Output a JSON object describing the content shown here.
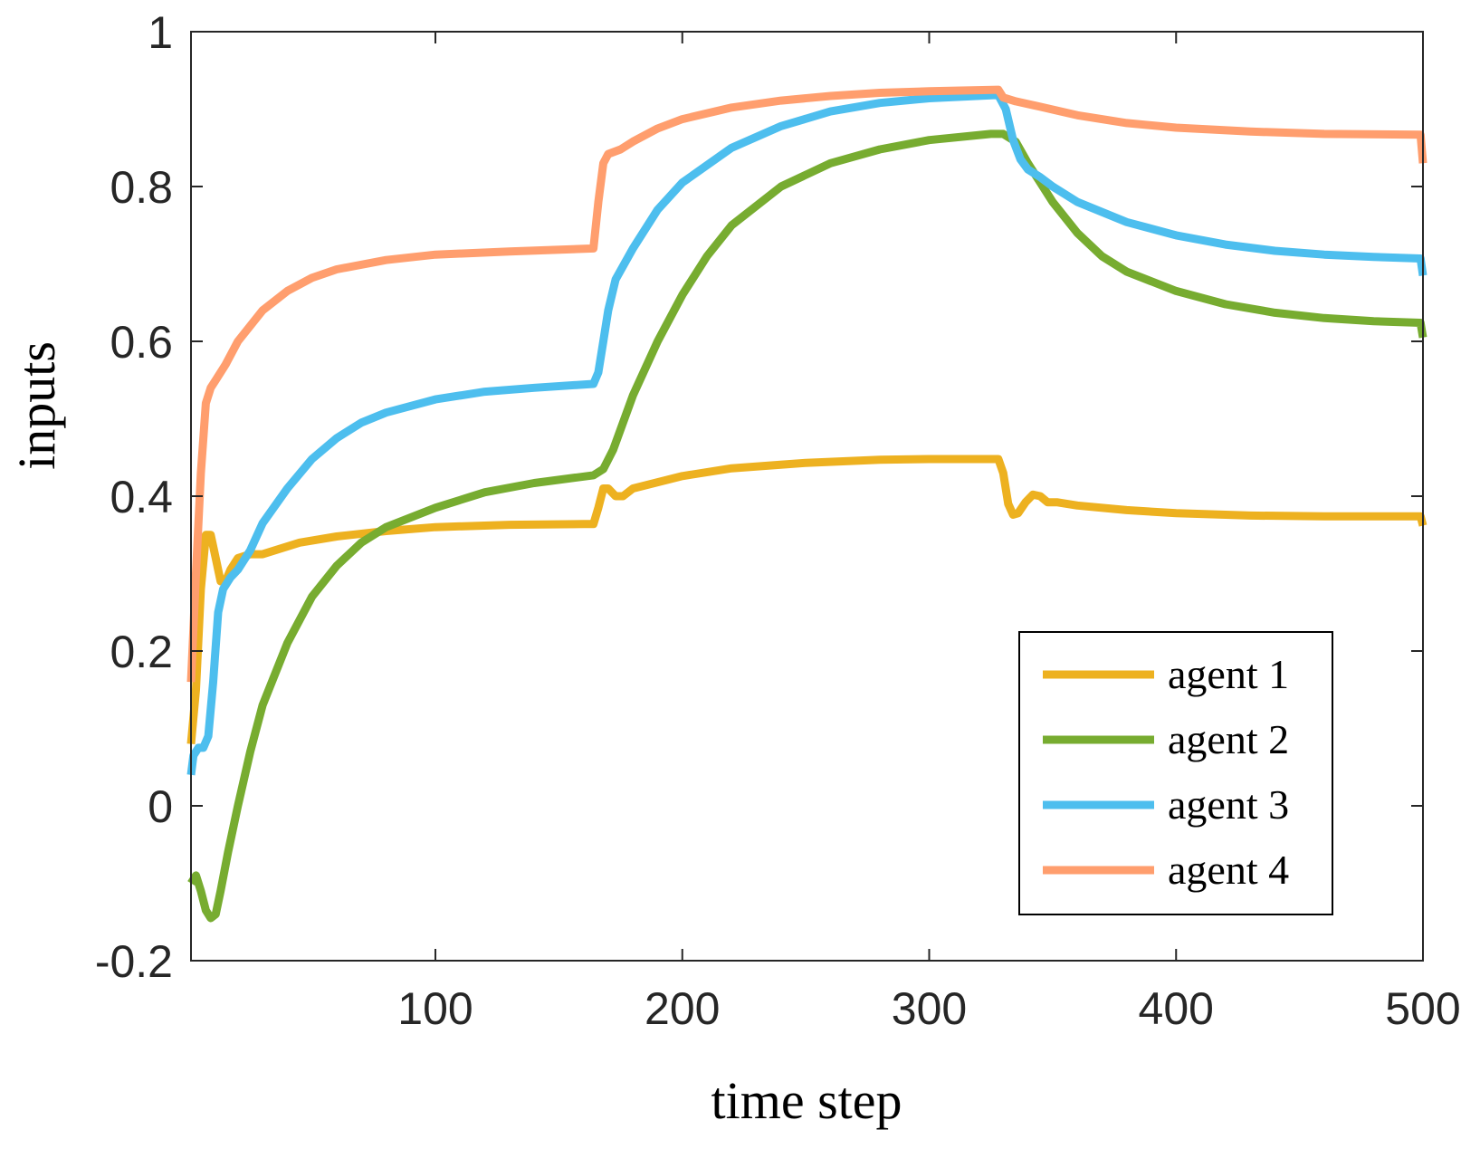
{
  "chart_data": {
    "type": "line",
    "title": "",
    "xlabel": "time step",
    "ylabel": "inputs",
    "xlim": [
      1,
      500
    ],
    "ylim": [
      -0.2,
      1
    ],
    "xticks": [
      100,
      200,
      300,
      400,
      500
    ],
    "xtick_labels": [
      "100",
      "200",
      "300",
      "400",
      "500"
    ],
    "yticks": [
      -0.2,
      0,
      0.2,
      0.4,
      0.6,
      0.8,
      1
    ],
    "ytick_labels": [
      "-0.2",
      "0",
      "0.2",
      "0.4",
      "0.6",
      "0.8",
      "1"
    ],
    "grid": false,
    "legend_position": "bottom-right",
    "series": [
      {
        "name": "agent 1",
        "color": "#EDB120",
        "points": [
          [
            1,
            0.08
          ],
          [
            3,
            0.15
          ],
          [
            5,
            0.28
          ],
          [
            7,
            0.35
          ],
          [
            9,
            0.35
          ],
          [
            11,
            0.32
          ],
          [
            13,
            0.29
          ],
          [
            15,
            0.29
          ],
          [
            17,
            0.305
          ],
          [
            20,
            0.32
          ],
          [
            25,
            0.325
          ],
          [
            30,
            0.325
          ],
          [
            35,
            0.33
          ],
          [
            45,
            0.34
          ],
          [
            60,
            0.348
          ],
          [
            80,
            0.355
          ],
          [
            100,
            0.36
          ],
          [
            130,
            0.363
          ],
          [
            160,
            0.364
          ],
          [
            164,
            0.364
          ],
          [
            166,
            0.385
          ],
          [
            168,
            0.41
          ],
          [
            170,
            0.41
          ],
          [
            173,
            0.4
          ],
          [
            176,
            0.4
          ],
          [
            180,
            0.41
          ],
          [
            190,
            0.418
          ],
          [
            200,
            0.426
          ],
          [
            220,
            0.436
          ],
          [
            250,
            0.443
          ],
          [
            280,
            0.447
          ],
          [
            300,
            0.448
          ],
          [
            328,
            0.448
          ],
          [
            330,
            0.43
          ],
          [
            332,
            0.39
          ],
          [
            334,
            0.376
          ],
          [
            336,
            0.378
          ],
          [
            339,
            0.392
          ],
          [
            342,
            0.402
          ],
          [
            345,
            0.4
          ],
          [
            348,
            0.392
          ],
          [
            352,
            0.392
          ],
          [
            360,
            0.388
          ],
          [
            380,
            0.382
          ],
          [
            400,
            0.378
          ],
          [
            430,
            0.375
          ],
          [
            460,
            0.374
          ],
          [
            499,
            0.374
          ],
          [
            500,
            0.362
          ]
        ]
      },
      {
        "name": "agent 2",
        "color": "#77AC30",
        "points": [
          [
            1,
            -0.1
          ],
          [
            3,
            -0.09
          ],
          [
            5,
            -0.11
          ],
          [
            7,
            -0.135
          ],
          [
            9,
            -0.145
          ],
          [
            11,
            -0.14
          ],
          [
            13,
            -0.11
          ],
          [
            16,
            -0.06
          ],
          [
            20,
            0.0
          ],
          [
            25,
            0.07
          ],
          [
            30,
            0.13
          ],
          [
            40,
            0.21
          ],
          [
            50,
            0.27
          ],
          [
            60,
            0.31
          ],
          [
            70,
            0.34
          ],
          [
            80,
            0.36
          ],
          [
            100,
            0.385
          ],
          [
            120,
            0.405
          ],
          [
            140,
            0.417
          ],
          [
            164,
            0.427
          ],
          [
            168,
            0.435
          ],
          [
            172,
            0.46
          ],
          [
            180,
            0.53
          ],
          [
            190,
            0.6
          ],
          [
            200,
            0.66
          ],
          [
            210,
            0.71
          ],
          [
            220,
            0.75
          ],
          [
            240,
            0.8
          ],
          [
            260,
            0.83
          ],
          [
            280,
            0.848
          ],
          [
            300,
            0.86
          ],
          [
            325,
            0.868
          ],
          [
            330,
            0.868
          ],
          [
            335,
            0.858
          ],
          [
            340,
            0.83
          ],
          [
            350,
            0.78
          ],
          [
            360,
            0.74
          ],
          [
            370,
            0.71
          ],
          [
            380,
            0.69
          ],
          [
            400,
            0.665
          ],
          [
            420,
            0.648
          ],
          [
            440,
            0.637
          ],
          [
            460,
            0.63
          ],
          [
            480,
            0.626
          ],
          [
            499,
            0.624
          ],
          [
            500,
            0.605
          ]
        ]
      },
      {
        "name": "agent 3",
        "color": "#4DBEEE",
        "points": [
          [
            1,
            0.04
          ],
          [
            2,
            0.065
          ],
          [
            4,
            0.075
          ],
          [
            6,
            0.075
          ],
          [
            8,
            0.09
          ],
          [
            10,
            0.16
          ],
          [
            12,
            0.25
          ],
          [
            14,
            0.28
          ],
          [
            17,
            0.295
          ],
          [
            20,
            0.305
          ],
          [
            25,
            0.33
          ],
          [
            30,
            0.365
          ],
          [
            40,
            0.41
          ],
          [
            50,
            0.448
          ],
          [
            60,
            0.475
          ],
          [
            70,
            0.495
          ],
          [
            80,
            0.508
          ],
          [
            100,
            0.525
          ],
          [
            120,
            0.535
          ],
          [
            140,
            0.54
          ],
          [
            164,
            0.545
          ],
          [
            166,
            0.56
          ],
          [
            168,
            0.6
          ],
          [
            170,
            0.64
          ],
          [
            173,
            0.68
          ],
          [
            180,
            0.72
          ],
          [
            190,
            0.77
          ],
          [
            200,
            0.805
          ],
          [
            220,
            0.85
          ],
          [
            240,
            0.878
          ],
          [
            260,
            0.897
          ],
          [
            280,
            0.908
          ],
          [
            300,
            0.914
          ],
          [
            326,
            0.918
          ],
          [
            328,
            0.918
          ],
          [
            331,
            0.9
          ],
          [
            334,
            0.86
          ],
          [
            337,
            0.835
          ],
          [
            340,
            0.822
          ],
          [
            345,
            0.812
          ],
          [
            350,
            0.8
          ],
          [
            360,
            0.78
          ],
          [
            380,
            0.754
          ],
          [
            400,
            0.737
          ],
          [
            420,
            0.725
          ],
          [
            440,
            0.717
          ],
          [
            460,
            0.712
          ],
          [
            480,
            0.709
          ],
          [
            499,
            0.707
          ],
          [
            500,
            0.685
          ]
        ]
      },
      {
        "name": "agent 4",
        "color": "#FF9E6E",
        "points": [
          [
            1,
            0.16
          ],
          [
            3,
            0.3
          ],
          [
            5,
            0.43
          ],
          [
            7,
            0.52
          ],
          [
            9,
            0.54
          ],
          [
            11,
            0.55
          ],
          [
            15,
            0.57
          ],
          [
            20,
            0.6
          ],
          [
            30,
            0.64
          ],
          [
            40,
            0.665
          ],
          [
            50,
            0.682
          ],
          [
            60,
            0.693
          ],
          [
            80,
            0.705
          ],
          [
            100,
            0.712
          ],
          [
            130,
            0.716
          ],
          [
            164,
            0.72
          ],
          [
            166,
            0.78
          ],
          [
            168,
            0.83
          ],
          [
            170,
            0.842
          ],
          [
            175,
            0.848
          ],
          [
            180,
            0.858
          ],
          [
            190,
            0.875
          ],
          [
            200,
            0.887
          ],
          [
            220,
            0.902
          ],
          [
            240,
            0.911
          ],
          [
            260,
            0.917
          ],
          [
            280,
            0.921
          ],
          [
            300,
            0.923
          ],
          [
            328,
            0.925
          ],
          [
            330,
            0.915
          ],
          [
            335,
            0.91
          ],
          [
            345,
            0.903
          ],
          [
            360,
            0.892
          ],
          [
            380,
            0.882
          ],
          [
            400,
            0.876
          ],
          [
            430,
            0.871
          ],
          [
            460,
            0.868
          ],
          [
            499,
            0.867
          ],
          [
            500,
            0.83
          ]
        ]
      }
    ]
  }
}
